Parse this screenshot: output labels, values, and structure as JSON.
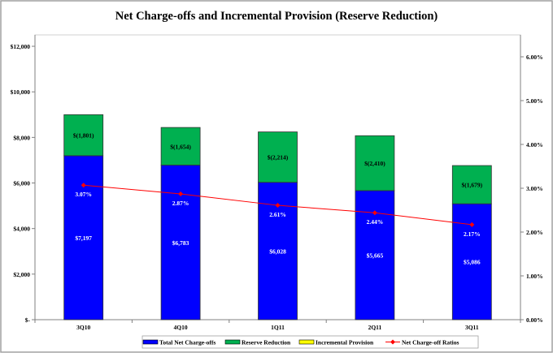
{
  "chart_data": {
    "type": "bar",
    "stacked": true,
    "title": "Net Charge-offs and Incremental Provision (Reserve Reduction)",
    "categories": [
      "3Q10",
      "4Q10",
      "1Q11",
      "2Q11",
      "3Q11"
    ],
    "series": [
      {
        "name": "Total Net Charge-offs",
        "type": "bar",
        "axis": "left",
        "color": "#0000FF",
        "values": [
          7197,
          6783,
          6028,
          5665,
          5086
        ],
        "labels": [
          "$7,197",
          "$6,783",
          "$6,028",
          "$5,665",
          "$5,086"
        ]
      },
      {
        "name": "Reserve Reduction",
        "type": "bar",
        "axis": "left",
        "color": "#00B050",
        "values": [
          1801,
          1654,
          2214,
          2410,
          1679
        ],
        "labels": [
          "$(1,801)",
          "$(1,654)",
          "$(2,214)",
          "$(2,410)",
          "$(1,679)"
        ]
      },
      {
        "name": "Incremental Provision",
        "type": "bar",
        "axis": "left",
        "color": "#FFFF00",
        "values": [
          0,
          0,
          0,
          0,
          0
        ]
      },
      {
        "name": "Net Charge-off Ratios",
        "type": "line",
        "axis": "right",
        "color": "#FF0000",
        "values": [
          3.07,
          2.87,
          2.61,
          2.44,
          2.17
        ],
        "labels": [
          "3.07%",
          "2.87%",
          "2.61%",
          "2.44%",
          "2.17%"
        ]
      }
    ],
    "left_axis": {
      "range": [
        0,
        12500
      ],
      "ticks": [
        0,
        2000,
        4000,
        6000,
        8000,
        10000,
        12000
      ],
      "tick_labels": [
        "$-",
        "$2,000",
        "$4,000",
        "$6,000",
        "$8,000",
        "$10,000",
        "$12,000"
      ]
    },
    "right_axis": {
      "range": [
        0,
        6.5
      ],
      "ticks": [
        0,
        1,
        2,
        3,
        4,
        5,
        6
      ],
      "tick_labels": [
        "0.00%",
        "1.00%",
        "2.00%",
        "3.00%",
        "4.00%",
        "5.00%",
        "6.00%"
      ]
    },
    "grid": false,
    "legend": "bottom"
  }
}
